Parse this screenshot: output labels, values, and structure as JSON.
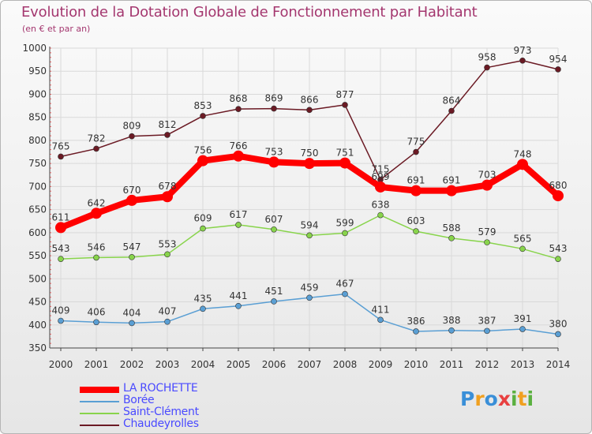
{
  "header": {
    "title": "Evolution de la Dotation Globale de Fonctionnement par Habitant",
    "subtitle": "(en € et par an)"
  },
  "logo": {
    "text": "Proxiti"
  },
  "colors": {
    "title": "#a4376f",
    "legend_text": "#4a4aff",
    "grid": "#d9d9d9",
    "axis": "#444444"
  },
  "chart_data": {
    "type": "line",
    "title": "Evolution de la Dotation Globale de Fonctionnement par Habitant",
    "subtitle": "(en € et par an)",
    "xlabel": "",
    "ylabel": "",
    "ylim": [
      350,
      1000
    ],
    "yticks": [
      350,
      400,
      450,
      500,
      550,
      600,
      650,
      700,
      750,
      800,
      850,
      900,
      950,
      1000
    ],
    "categories": [
      "2000",
      "2001",
      "2002",
      "2003",
      "2004",
      "2005",
      "2006",
      "2007",
      "2008",
      "2009",
      "2010",
      "2011",
      "2012",
      "2013",
      "2014"
    ],
    "grid": true,
    "legend_position": "bottom-left",
    "series": [
      {
        "name": "Chaudeyrolles",
        "color": "#6b1a24",
        "values": [
          765,
          782,
          809,
          812,
          853,
          868,
          869,
          866,
          877,
          715,
          775,
          864,
          958,
          973,
          954
        ]
      },
      {
        "name": "Saint-Clément",
        "color": "#88d44b",
        "values": [
          543,
          546,
          547,
          553,
          609,
          617,
          607,
          594,
          599,
          638,
          603,
          588,
          579,
          565,
          543
        ]
      },
      {
        "name": "Borée",
        "color": "#5a9fd4",
        "values": [
          409,
          406,
          404,
          407,
          435,
          441,
          451,
          459,
          467,
          411,
          386,
          388,
          387,
          391,
          380
        ]
      },
      {
        "name": "LA ROCHETTE",
        "color": "#ff0000",
        "values": [
          611,
          642,
          670,
          678,
          756,
          766,
          753,
          750,
          751,
          699,
          691,
          691,
          703,
          748,
          680
        ]
      }
    ],
    "legend_order": [
      "LA ROCHETTE",
      "Borée",
      "Saint-Clément",
      "Chaudeyrolles"
    ]
  }
}
